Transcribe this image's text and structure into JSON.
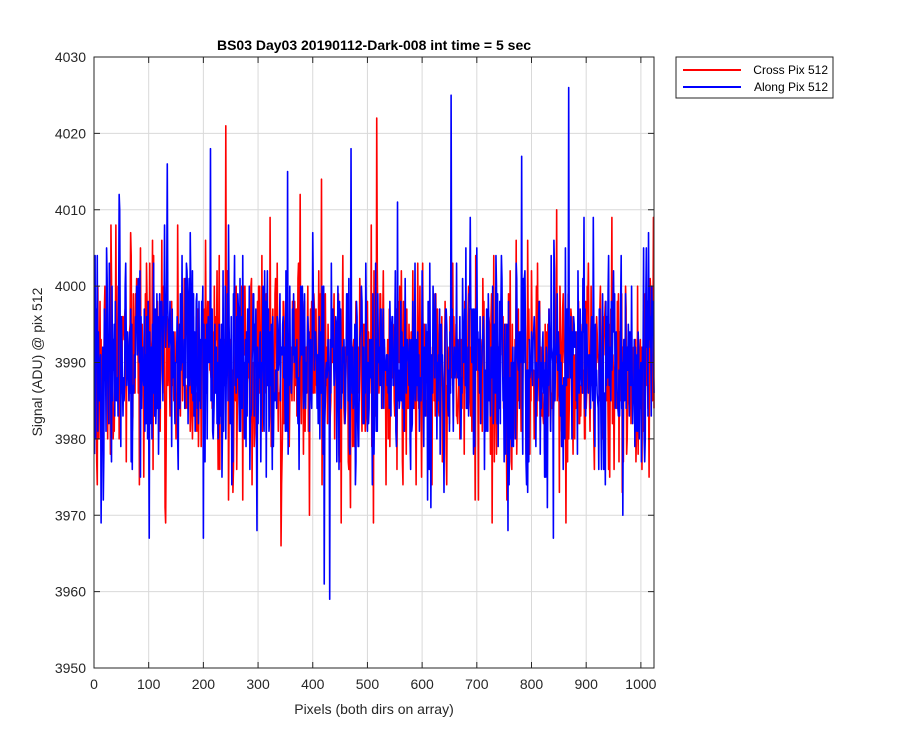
{
  "chart_data": {
    "type": "line",
    "title": "BS03 Day03 20190112-Dark-008 int time = 5 sec",
    "xlabel": "Pixels (both dirs on array)",
    "ylabel": "Signal (ADU) @ pix 512",
    "xlim": [
      0,
      1024
    ],
    "ylim": [
      3950,
      4030
    ],
    "xticks": [
      0,
      100,
      200,
      300,
      400,
      500,
      600,
      700,
      800,
      900,
      1000
    ],
    "yticks": [
      3950,
      3960,
      3970,
      3980,
      3990,
      4000,
      4010,
      4020,
      4030
    ],
    "grid": true,
    "legend_position": "outside-top-right",
    "n_points": 1024,
    "series": [
      {
        "name": "Cross Pix 512",
        "color": "#ff0000",
        "mean": 3989.5,
        "std": 6.8,
        "seed": 17,
        "spikes": [
          {
            "x": 240,
            "y": 4021
          },
          {
            "x": 516,
            "y": 4022
          },
          {
            "x": 415,
            "y": 4014
          },
          {
            "x": 376,
            "y": 4012
          },
          {
            "x": 341,
            "y": 3966
          },
          {
            "x": 130,
            "y": 3969
          },
          {
            "x": 727,
            "y": 3969
          },
          {
            "x": 862,
            "y": 3969
          },
          {
            "x": 845,
            "y": 4010
          },
          {
            "x": 1022,
            "y": 4009
          },
          {
            "x": 5,
            "y": 3974
          },
          {
            "x": 30,
            "y": 4008
          }
        ]
      },
      {
        "name": "Along Pix 512",
        "color": "#0000ff",
        "mean": 3989.5,
        "std": 7.2,
        "seed": 91,
        "spikes": [
          {
            "x": 867,
            "y": 4026
          },
          {
            "x": 652,
            "y": 4025
          },
          {
            "x": 469,
            "y": 4018
          },
          {
            "x": 212,
            "y": 4018
          },
          {
            "x": 133,
            "y": 4016
          },
          {
            "x": 353,
            "y": 4015
          },
          {
            "x": 781,
            "y": 4017
          },
          {
            "x": 430,
            "y": 3959
          },
          {
            "x": 420,
            "y": 3961
          },
          {
            "x": 839,
            "y": 3967
          },
          {
            "x": 199,
            "y": 3967
          },
          {
            "x": 12,
            "y": 3969
          },
          {
            "x": 45,
            "y": 4012
          }
        ]
      }
    ]
  }
}
